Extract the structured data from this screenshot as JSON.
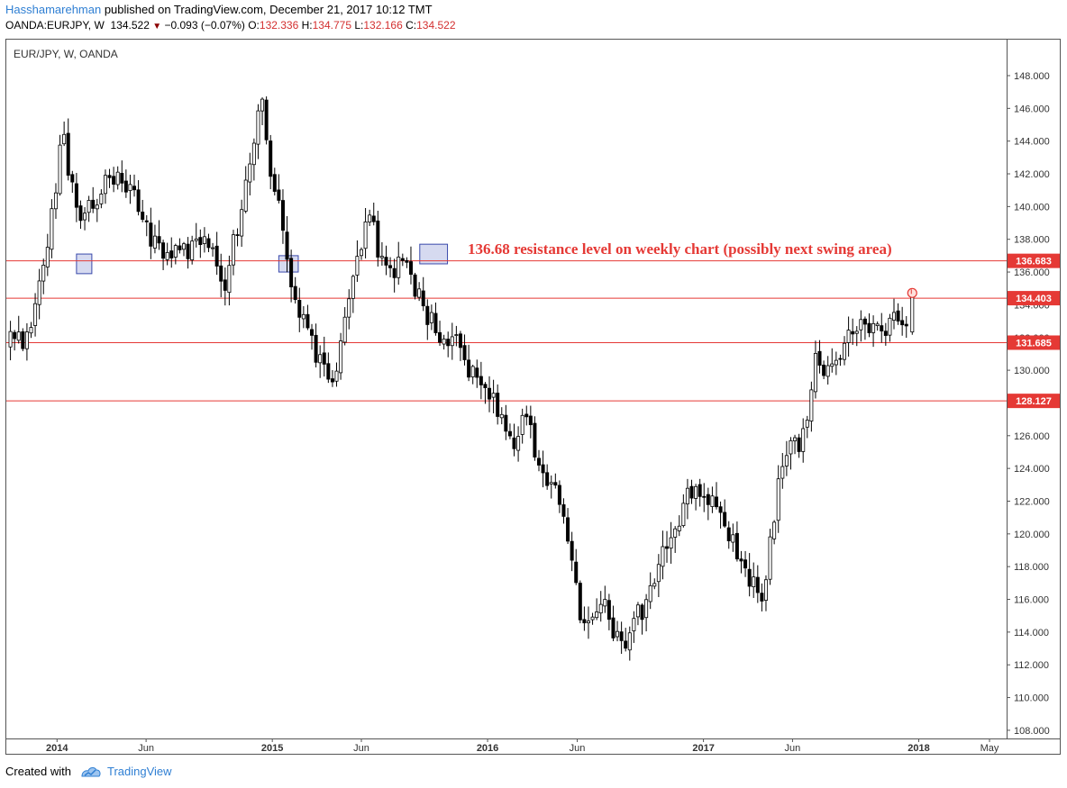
{
  "header": {
    "author": "Hasshamarehman",
    "published_text": " published on TradingView.com, December 21, 2017 10:12 TMT",
    "symbol": "OANDA:EURJPY, W",
    "last": "134.522",
    "change": "−0.093 (−0.07%)",
    "o_label": "O:",
    "o_value": "132.336",
    "h_label": "H:",
    "h_value": "134.775",
    "l_label": "L:",
    "l_value": "132.166",
    "c_label": "C:",
    "c_value": "134.522"
  },
  "chart_title": "EUR/JPY, W, OANDA",
  "annotation": "136.68 resistance level on weekly chart (possibly next swing area)",
  "footer": {
    "created_with": "Created with",
    "brand": "TradingView"
  },
  "colors": {
    "up_candle": "#ffffff",
    "down_candle": "#000000",
    "candle_outline": "#000000",
    "level_line": "#e53935",
    "annotation": "#e53935",
    "box_fill": "#c5cae9",
    "box_stroke": "#3949ab"
  },
  "chart_data": {
    "type": "candlestick",
    "title": "EUR/JPY, W, OANDA",
    "x_tick_labels": [
      "2014",
      "Jun",
      "2015",
      "Jun",
      "2016",
      "Jun",
      "2017",
      "Jun",
      "2018",
      "May"
    ],
    "y_tick_labels": [
      "148.000",
      "146.000",
      "144.000",
      "142.000",
      "140.000",
      "138.000",
      "136.000",
      "134.000",
      "132.000",
      "130.000",
      "128.000",
      "126.000",
      "124.000",
      "122.000",
      "120.000",
      "118.000",
      "116.000",
      "114.000",
      "112.000",
      "110.000",
      "108.000"
    ],
    "ylim": [
      107.5,
      150.2
    ],
    "horizontal_levels": [
      136.683,
      134.403,
      131.685,
      128.127
    ],
    "level_labels": [
      "136.683",
      "134.403",
      "131.685",
      "128.127"
    ],
    "anchors": [
      [
        "2013-11",
        131.5
      ],
      [
        "2013-12",
        137
      ],
      [
        "2014-01",
        144.5
      ],
      [
        "2014-02",
        138
      ],
      [
        "2014-03",
        141
      ],
      [
        "2014-04",
        142.5
      ],
      [
        "2014-05",
        140.5
      ],
      [
        "2014-06",
        138
      ],
      [
        "2014-07",
        137.5
      ],
      [
        "2014-08",
        137
      ],
      [
        "2014-09",
        139
      ],
      [
        "2014-10",
        135.5
      ],
      [
        "2014-11",
        140
      ],
      [
        "2014-12",
        147
      ],
      [
        "2015-01",
        140
      ],
      [
        "2015-02",
        133
      ],
      [
        "2015-03",
        131
      ],
      [
        "2015-04",
        129
      ],
      [
        "2015-05",
        134.5
      ],
      [
        "2015-06",
        139.5
      ],
      [
        "2015-07",
        135.5
      ],
      [
        "2015-08",
        137
      ],
      [
        "2015-09",
        134
      ],
      [
        "2015-10",
        132.5
      ],
      [
        "2015-11",
        131.5
      ],
      [
        "2016-01",
        128
      ],
      [
        "2016-02",
        125
      ],
      [
        "2016-03",
        127
      ],
      [
        "2016-04",
        122.5
      ],
      [
        "2016-05",
        121
      ],
      [
        "2016-06",
        114
      ],
      [
        "2016-07",
        115.5
      ],
      [
        "2016-08",
        113.5
      ],
      [
        "2016-09",
        114.5
      ],
      [
        "2016-10",
        116
      ],
      [
        "2016-11",
        120.5
      ],
      [
        "2016-12",
        122.5
      ],
      [
        "2017-01",
        122
      ],
      [
        "2017-02",
        120
      ],
      [
        "2017-03",
        118.5
      ],
      [
        "2017-04",
        116
      ],
      [
        "2017-05",
        124
      ],
      [
        "2017-06",
        125
      ],
      [
        "2017-07",
        130.5
      ],
      [
        "2017-08",
        129.5
      ],
      [
        "2017-09",
        132
      ],
      [
        "2017-10",
        132.5
      ],
      [
        "2017-11",
        133.5
      ],
      [
        "2017-12-21",
        134.522
      ]
    ],
    "last_candle": {
      "date": "2017-12-21",
      "open": 132.336,
      "high": 134.775,
      "low": 132.166,
      "close": 134.522
    },
    "highlight_boxes": [
      {
        "from": "2014-02-03",
        "to": "2014-03-01",
        "y": [
          135.9,
          137.1
        ]
      },
      {
        "from": "2015-01-12",
        "to": "2015-02-14",
        "y": [
          136.0,
          137.0
        ]
      },
      {
        "from": "2015-09-08",
        "to": "2015-10-25",
        "y": [
          136.5,
          137.7
        ]
      }
    ],
    "scale": {
      "x_min": "2013-10-07",
      "x_max": "2018-05-30"
    }
  }
}
